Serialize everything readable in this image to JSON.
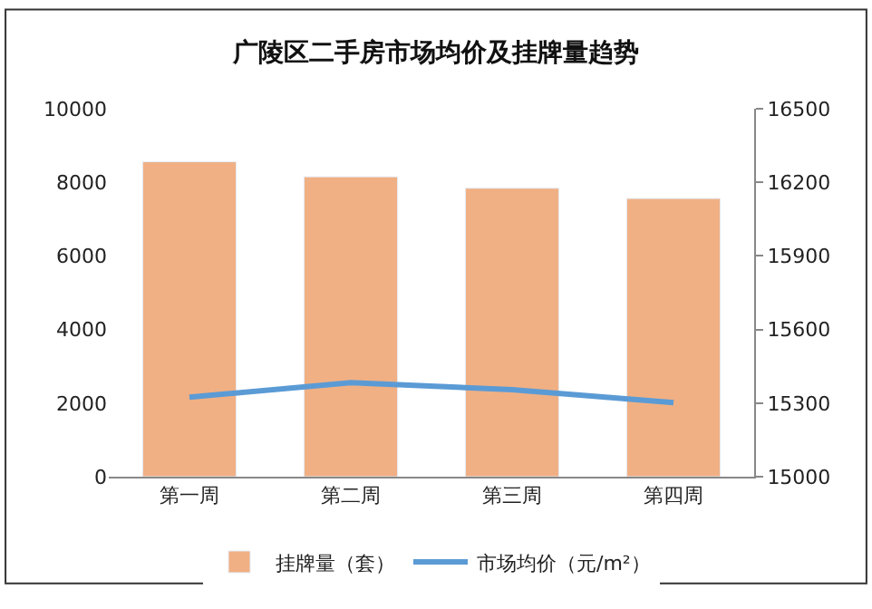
{
  "chart_data": {
    "type": "bar",
    "title": "广陵区二手房市场均价及挂牌量趋势",
    "categories": [
      "第一周",
      "第二周",
      "第三周",
      "第四周"
    ],
    "series": [
      {
        "name": "挂牌量（套）",
        "color": "#f0b084",
        "values": [
          8560,
          8150,
          7840,
          7560
        ]
      },
      {
        "name": "市场均价（元/m²）",
        "type": "line",
        "axis": "y2",
        "color": "#5b9bd5",
        "values": [
          15324,
          15383,
          15355,
          15302
        ]
      }
    ],
    "ylim": [
      0,
      10000
    ],
    "yticks": [
      0,
      2000,
      4000,
      6000,
      8000,
      10000
    ],
    "y2lim": [
      15000,
      16500
    ],
    "y2ticks": [
      15000,
      15300,
      15600,
      15900,
      16200,
      16500
    ],
    "legend": "bottom",
    "marker": "none"
  }
}
